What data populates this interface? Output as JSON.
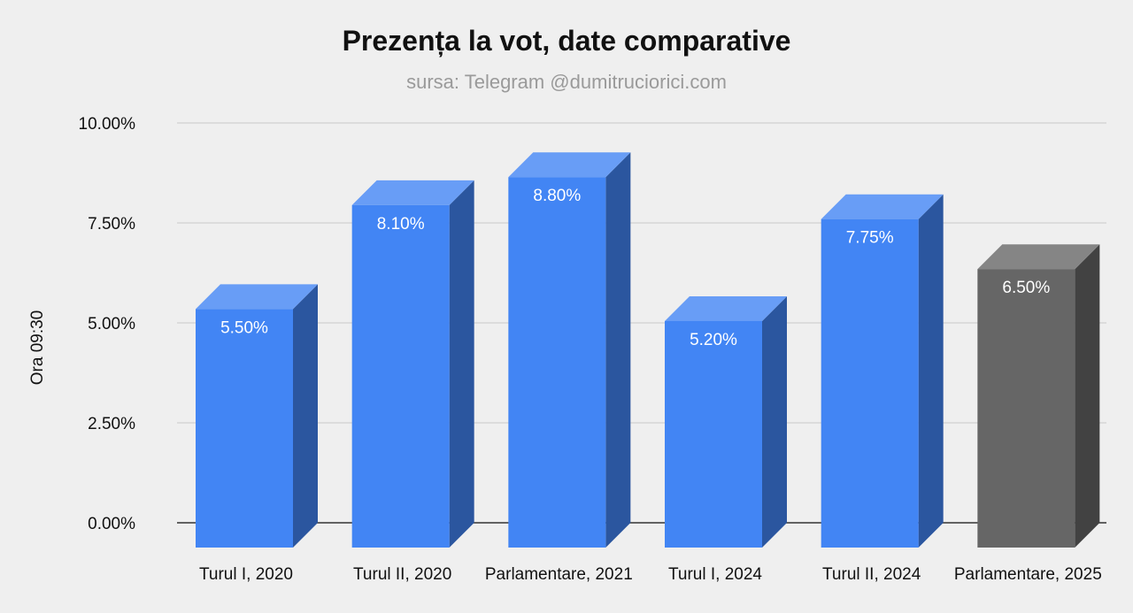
{
  "chart_data": {
    "type": "bar",
    "title": "Prezența la vot, date comparative",
    "subtitle": "sursa: Telegram @dumitruciorici.com",
    "ylabel": "Ora 09:30",
    "xlabel": "",
    "ylim": [
      0,
      10
    ],
    "yticks": [
      "0.00%",
      "2.50%",
      "5.00%",
      "7.50%",
      "10.00%"
    ],
    "yticks_values": [
      0,
      2.5,
      5,
      7.5,
      10
    ],
    "categories": [
      "Turul I, 2020",
      "Turul II, 2020",
      "Parlamentare, 2021",
      "Turul I, 2024",
      "Turul II, 2024",
      "Parlamentare, 2025"
    ],
    "values": [
      5.5,
      8.1,
      8.8,
      5.2,
      7.75,
      6.5
    ],
    "data_labels": [
      "5.50%",
      "8.10%",
      "8.80%",
      "5.20%",
      "7.75%",
      "6.50%"
    ],
    "bar_colors": [
      "#4285f4",
      "#4285f4",
      "#4285f4",
      "#4285f4",
      "#4285f4",
      "#666666"
    ],
    "style": "3d",
    "grid": true,
    "legend": "none"
  }
}
